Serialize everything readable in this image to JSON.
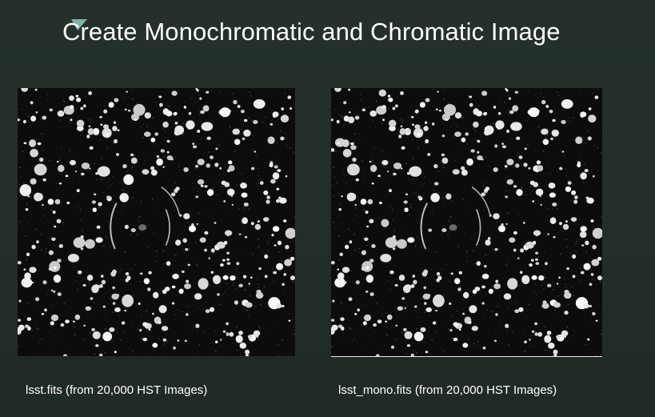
{
  "slide": {
    "title": "Create Monochromatic and Chromatic Image",
    "colors": {
      "background": "#25302b",
      "title_text": "#ffffff",
      "caption_text": "#ffffff",
      "accent_mark": "#7fb3ad",
      "image_background": "#0c0c0c",
      "star": "#ffffff"
    },
    "images": [
      {
        "caption": "lsst.fits (from 20,000 HST Images)",
        "content": "starfield-with-arc-icon"
      },
      {
        "caption": "lsst_mono.fits (from 20,000 HST Images)",
        "content": "starfield-with-arc-icon"
      }
    ]
  }
}
